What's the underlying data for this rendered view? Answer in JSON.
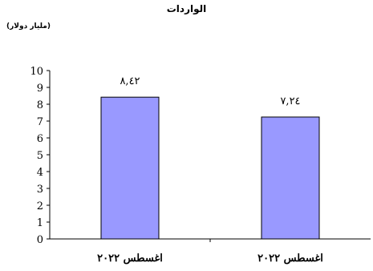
{
  "chart_data": {
    "type": "bar",
    "title": "الواردات",
    "subtitle": "(مليار دولار)",
    "categories": [
      "اغسطس ٢٠٢٢",
      "اغسطس ٢٠٢٢"
    ],
    "values": [
      8.42,
      7.24
    ],
    "data_labels": [
      "٨,٤٢",
      "٧,٢٤"
    ],
    "ylim": [
      0,
      10
    ],
    "yticks": [
      0,
      1,
      2,
      3,
      4,
      5,
      6,
      7,
      8,
      9,
      10
    ],
    "grid": false,
    "legend": "none",
    "bar_color": "#9999ff",
    "bar_border_color": "#000000"
  }
}
